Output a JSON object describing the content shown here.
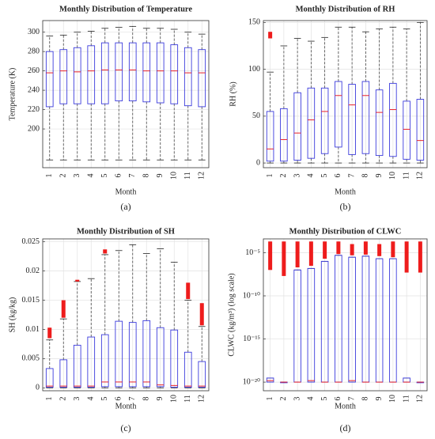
{
  "chart_data": [
    {
      "type": "box",
      "title": "Monthly Distribution of Temperature",
      "x_label": "Month",
      "y_label": "Temperature (K)",
      "caption": "(a)",
      "categories": [
        "1",
        "2",
        "3",
        "4",
        "5",
        "6",
        "7",
        "8",
        "9",
        "10",
        "11",
        "12"
      ],
      "whisker_low": [
        168,
        168,
        168,
        168,
        168,
        168,
        168,
        168,
        168,
        168,
        168,
        168
      ],
      "q1": [
        223,
        226,
        226,
        226,
        226,
        229,
        229,
        228,
        227,
        226,
        224,
        223
      ],
      "median": [
        258,
        260,
        259,
        260,
        261,
        261,
        261,
        260,
        260,
        260,
        258,
        258
      ],
      "q3": [
        280,
        282,
        284,
        286,
        289,
        289,
        289,
        289,
        289,
        287,
        284,
        282
      ],
      "whisker_high": [
        296,
        297,
        300,
        301,
        304,
        305,
        306,
        304,
        304,
        303,
        300,
        298
      ],
      "outlier_low": [
        null,
        null,
        null,
        null,
        null,
        null,
        null,
        null,
        null,
        null,
        null,
        null
      ],
      "outlier_high": [
        null,
        null,
        null,
        null,
        null,
        null,
        null,
        null,
        null,
        null,
        null,
        null
      ],
      "ylim": [
        160,
        312
      ],
      "yticks": [
        200,
        220,
        240,
        260,
        280,
        300
      ],
      "grid": true,
      "log": false,
      "box_color": "#3b3bdc",
      "median_color": "#e8202a",
      "outlier_color": "#ee1c1c"
    },
    {
      "type": "box",
      "title": "Monthly Distribution of RH",
      "x_label": "Month",
      "y_label": "RH (%)",
      "caption": "(b)",
      "categories": [
        "1",
        "2",
        "3",
        "4",
        "5",
        "6",
        "7",
        "8",
        "9",
        "10",
        "11",
        "12"
      ],
      "whisker_low": [
        0,
        0,
        0,
        0,
        0,
        0,
        0,
        0,
        0,
        0,
        0,
        0
      ],
      "q1": [
        2,
        2,
        3,
        5,
        10,
        17,
        9,
        10,
        8,
        7,
        4,
        3
      ],
      "median": [
        15,
        25,
        32,
        46,
        55,
        72,
        62,
        72,
        54,
        57,
        36,
        24
      ],
      "q3": [
        55,
        58,
        75,
        80,
        80,
        87,
        84,
        87,
        78,
        85,
        66,
        68
      ],
      "whisker_high": [
        97,
        125,
        133,
        130,
        134,
        145,
        145,
        140,
        143,
        145,
        143,
        150
      ],
      "outlier_low": [
        133,
        null,
        null,
        null,
        null,
        null,
        null,
        null,
        null,
        null,
        null,
        null
      ],
      "outlier_high": [
        140,
        null,
        null,
        null,
        null,
        null,
        null,
        null,
        null,
        null,
        null,
        null
      ],
      "ylim": [
        -5,
        152
      ],
      "yticks": [
        0,
        50,
        100,
        150
      ],
      "grid": true,
      "log": false,
      "box_color": "#3b3bdc",
      "median_color": "#e8202a",
      "outlier_color": "#ee1c1c"
    },
    {
      "type": "box",
      "title": "Monthly Distribution of SH",
      "x_label": "Month",
      "y_label": "SH (kg/kg)",
      "caption": "(c)",
      "categories": [
        "1",
        "2",
        "3",
        "4",
        "5",
        "6",
        "7",
        "8",
        "9",
        "10",
        "11",
        "12"
      ],
      "whisker_low": [
        0,
        0,
        0,
        0,
        0,
        0,
        0,
        0,
        0,
        0,
        0,
        0
      ],
      "q1": [
        0.0001,
        0.0001,
        0.0001,
        0.0001,
        0.0002,
        0.0002,
        0.0002,
        0.0002,
        0.0002,
        0.0001,
        0.0001,
        0.0001
      ],
      "median": [
        0.0003,
        0.0003,
        0.0003,
        0.0003,
        0.001,
        0.001,
        0.001,
        0.001,
        0.0005,
        0.0004,
        0.0003,
        0.0003
      ],
      "q3": [
        0.0033,
        0.0048,
        0.0073,
        0.0087,
        0.0091,
        0.0114,
        0.0112,
        0.0115,
        0.0103,
        0.0099,
        0.0061,
        0.0045
      ],
      "whisker_high": [
        0.0082,
        0.0118,
        0.0182,
        0.0187,
        0.0228,
        0.0235,
        0.0245,
        0.023,
        0.0238,
        0.0215,
        0.015,
        0.0105
      ],
      "outlier_low": [
        0.0085,
        0.012,
        0.0182,
        null,
        0.023,
        null,
        null,
        null,
        null,
        null,
        0.0152,
        0.0107
      ],
      "outlier_high": [
        0.0103,
        0.015,
        0.0185,
        null,
        0.0237,
        null,
        null,
        null,
        null,
        null,
        0.018,
        0.0145
      ],
      "ylim": [
        -0.0005,
        0.0255
      ],
      "yticks": [
        0,
        0.005,
        0.01,
        0.015,
        0.02,
        0.025
      ],
      "grid": true,
      "log": false,
      "box_color": "#3b3bdc",
      "median_color": "#e8202a",
      "outlier_color": "#ee1c1c"
    },
    {
      "type": "box",
      "title": "Monthly Distribution of CLWC",
      "x_label": "Month",
      "y_label": "CLWC (kg/m³) (log scale)",
      "caption": "(d)",
      "categories": [
        "1",
        "2",
        "3",
        "4",
        "5",
        "6",
        "7",
        "8",
        "9",
        "10",
        "11",
        "12"
      ],
      "whisker_low": [
        1e-20,
        1e-20,
        1e-20,
        1e-20,
        1e-20,
        1e-20,
        1e-20,
        1e-20,
        1e-20,
        1e-20,
        1e-20,
        1e-20
      ],
      "q1": [
        1e-20,
        1e-20,
        1e-20,
        1e-20,
        1e-20,
        1e-20,
        1e-20,
        1e-20,
        1e-20,
        1e-20,
        1e-20,
        1e-20
      ],
      "median": [
        1.5e-20,
        1e-20,
        1e-20,
        1.5e-20,
        1e-20,
        1e-20,
        1.5e-20,
        1e-20,
        1e-20,
        1e-20,
        1e-20,
        1e-20
      ],
      "q3": [
        3e-20,
        1e-20,
        1e-07,
        1.5e-07,
        1e-06,
        5e-06,
        3e-06,
        4e-06,
        2e-06,
        2e-06,
        3e-20,
        1e-20
      ],
      "whisker_high": [
        3e-20,
        1e-20,
        1e-07,
        1.5e-07,
        1e-06,
        5e-06,
        3e-06,
        4e-06,
        2e-06,
        2e-06,
        3e-20,
        1e-20
      ],
      "outlier_low": [
        1e-07,
        2e-08,
        2e-07,
        3e-07,
        2e-06,
        7e-06,
        5e-06,
        6e-06,
        4e-06,
        3e-06,
        5e-08,
        5e-08
      ],
      "outlier_high": [
        0.0002,
        0.0002,
        0.0002,
        0.0002,
        0.0002,
        0.0002,
        0.0001,
        0.0002,
        0.0001,
        0.0002,
        0.0002,
        0.0002
      ],
      "ylim": [
        1e-21,
        0.0004
      ],
      "yticks": [
        {
          "value": 1e-20,
          "label": "10⁻²⁰"
        },
        {
          "value": 1e-15,
          "label": "10⁻¹⁵"
        },
        {
          "value": 1e-10,
          "label": "10⁻¹⁰"
        },
        {
          "value": 1e-05,
          "label": "10⁻⁵"
        }
      ],
      "grid": true,
      "log": true,
      "box_color": "#3b3bdc",
      "median_color": "#e8202a",
      "outlier_color": "#ee1c1c"
    }
  ]
}
